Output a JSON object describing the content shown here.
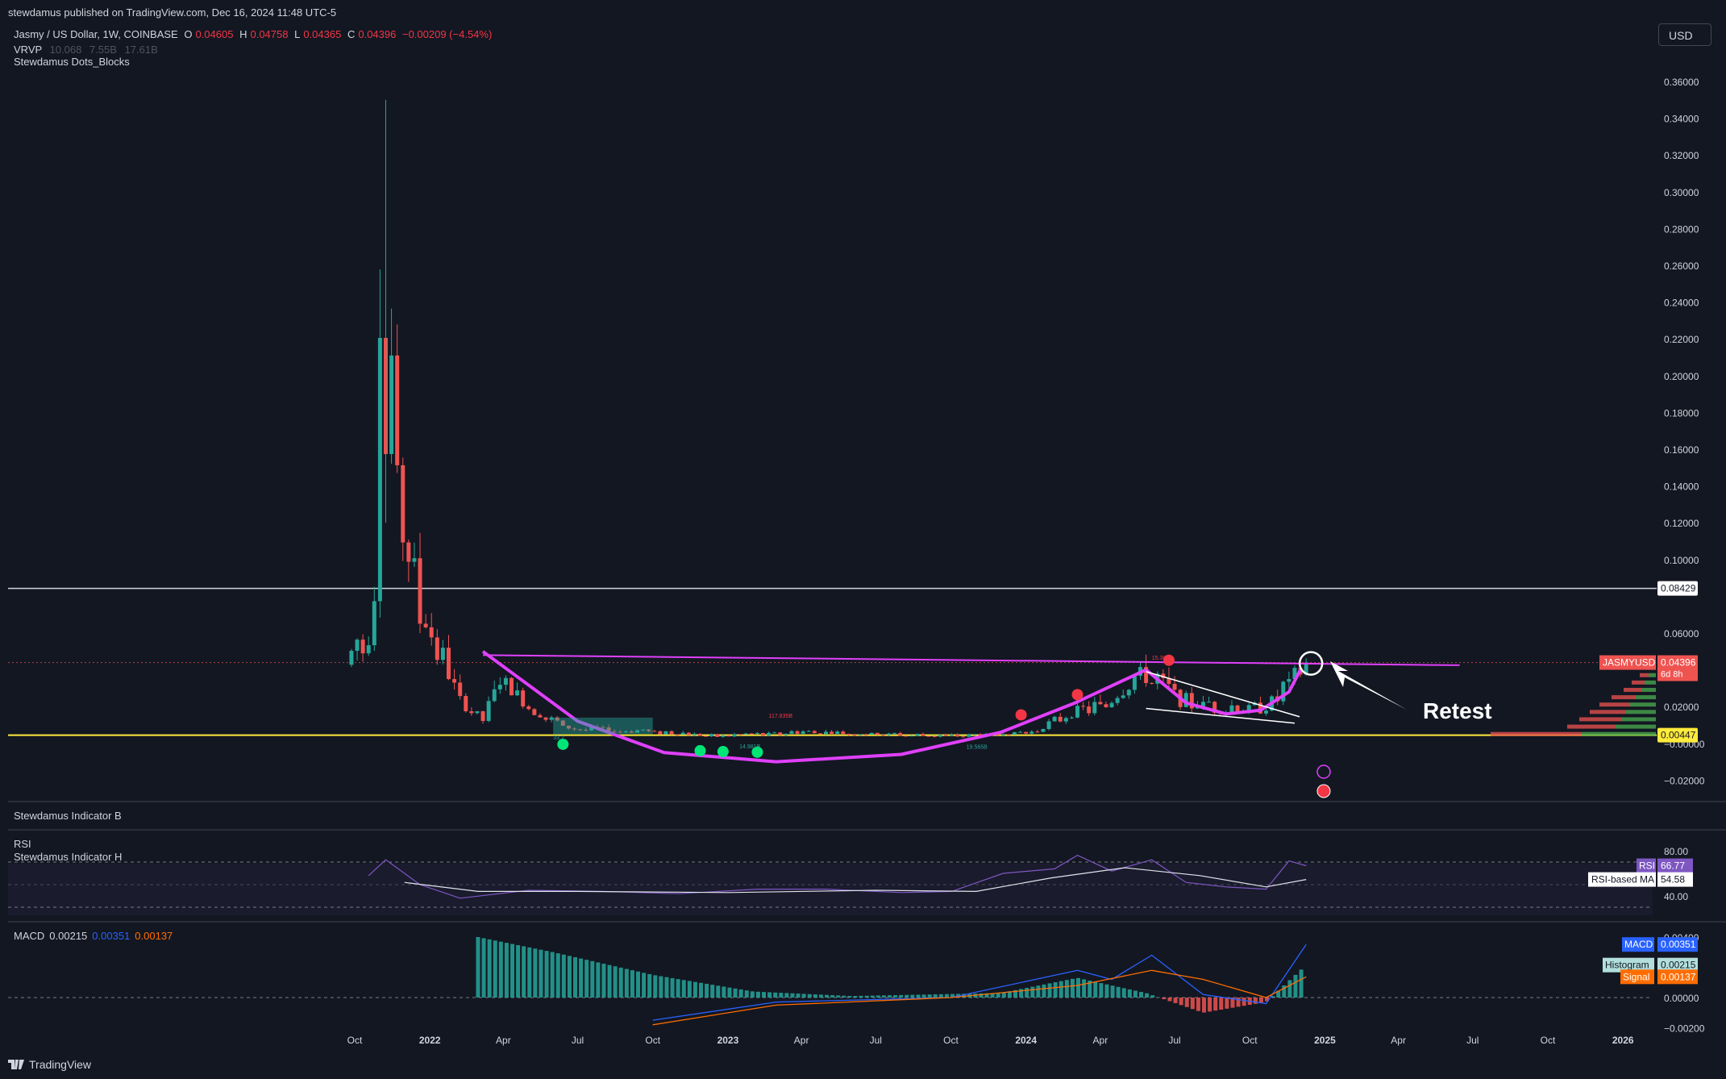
{
  "header": {
    "published": "stewdamus published on TradingView.com, Dec 16, 2024 11:48 UTC-5",
    "symbol": "Jasmy / US Dollar, 1W, COINBASE",
    "o_label": "O",
    "o_value": "0.04605",
    "h_label": "H",
    "h_value": "0.04758",
    "l_label": "L",
    "l_value": "0.04365",
    "c_label": "C",
    "c_value": "0.04396",
    "change": "−0.00209 (−4.54%)",
    "vrvp_label": "VRVP",
    "vrvp_values": [
      "10.068",
      "7.55B",
      "17.61B"
    ],
    "indicator_dots": "Stewdamus Dots_Blocks",
    "currency_button": "USD"
  },
  "panes": {
    "indicator_b": "Stewdamus Indicator B",
    "rsi_title": "RSI",
    "indicator_h": "Stewdamus Indicator H",
    "macd_title": "MACD",
    "macd_values": [
      "0.00215",
      "0.00351",
      "0.00137"
    ]
  },
  "footer": {
    "brand": "TradingView"
  },
  "annotations": {
    "retest": "Retest",
    "small_label_1": "15.38",
    "small_label_2": "117.835B",
    "small_label_3": "14.981B",
    "small_label_4": "19.565B",
    "small_label_5": "33.2"
  },
  "colors": {
    "background": "#131722",
    "up": "#26a69a",
    "down": "#ef5350",
    "magenta": "#e040fb",
    "yellow": "#ffeb3b",
    "rsi_line": "#7e57c2",
    "macd_line": "#2962ff",
    "signal_line": "#ff6d00"
  },
  "chart_data": [
    {
      "type": "candlestick",
      "title": "Jasmy / US Dollar, 1W, COINBASE",
      "x_ticks": [
        "Oct",
        "2022",
        "Apr",
        "Jul",
        "Oct",
        "2023",
        "Apr",
        "Jul",
        "Oct",
        "2024",
        "Apr",
        "Jul",
        "Oct",
        "2025",
        "Apr",
        "Jul",
        "Oct",
        "2026"
      ],
      "y_ticks": [
        "0.36000",
        "0.34000",
        "0.32000",
        "0.30000",
        "0.28000",
        "0.26000",
        "0.24000",
        "0.22000",
        "0.20000",
        "0.18000",
        "0.16000",
        "0.14000",
        "0.12000",
        "0.10000",
        "0.08429",
        "0.06000",
        "0.04396",
        "0.02000",
        "0.00447",
        "−0.00000",
        "−0.02000"
      ],
      "ylim": [
        -0.025,
        0.37
      ],
      "approx_path": [
        {
          "x": "2021-09-27",
          "close": 0.045
        },
        {
          "x": "2021-10-18",
          "close": 0.062
        },
        {
          "x": "2021-10-25",
          "close": 0.09
        },
        {
          "x": "2021-11-01",
          "close": 0.24
        },
        {
          "x": "2021-11-08",
          "close": 0.17
        },
        {
          "x": "2021-11-15",
          "close": 0.19
        },
        {
          "x": "2021-11-22",
          "close": 0.14
        },
        {
          "x": "2021-12-06",
          "close": 0.11
        },
        {
          "x": "2021-12-20",
          "close": 0.075
        },
        {
          "x": "2022-01-10",
          "close": 0.055
        },
        {
          "x": "2022-02-07",
          "close": 0.022
        },
        {
          "x": "2022-03-07",
          "close": 0.014
        },
        {
          "x": "2022-03-28",
          "close": 0.034
        },
        {
          "x": "2022-05-02",
          "close": 0.02
        },
        {
          "x": "2022-06-13",
          "close": 0.009
        },
        {
          "x": "2022-10-03",
          "close": 0.006
        },
        {
          "x": "2022-12-26",
          "close": 0.004
        },
        {
          "x": "2023-04-03",
          "close": 0.006
        },
        {
          "x": "2023-10-02",
          "close": 0.004
        },
        {
          "x": "2024-01-08",
          "close": 0.006
        },
        {
          "x": "2024-02-26",
          "close": 0.017
        },
        {
          "x": "2024-04-01",
          "close": 0.02
        },
        {
          "x": "2024-05-27",
          "close": 0.038
        },
        {
          "x": "2024-07-08",
          "close": 0.024
        },
        {
          "x": "2024-09-02",
          "close": 0.018
        },
        {
          "x": "2024-10-21",
          "close": 0.02
        },
        {
          "x": "2024-11-18",
          "close": 0.032
        },
        {
          "x": "2024-12-09",
          "close": 0.04396
        }
      ],
      "price_labels": [
        {
          "name": "horizontal-line",
          "value": "0.08429"
        },
        {
          "name": "JASMYUSD",
          "value": "0.04396",
          "countdown": "6d 8h"
        },
        {
          "name": "support-line",
          "value": "0.00447"
        }
      ]
    },
    {
      "type": "line",
      "title": "RSI",
      "y_ticks": [
        "80.00",
        "40.00"
      ],
      "series": [
        {
          "name": "RSI",
          "last": "66.77"
        },
        {
          "name": "RSI-based MA",
          "last": "54.58"
        }
      ]
    },
    {
      "type": "bar",
      "title": "MACD",
      "y_ticks": [
        "0.00400",
        "0.00000",
        "−0.00200"
      ],
      "series": [
        {
          "name": "MACD",
          "last": "0.00351"
        },
        {
          "name": "Histogram",
          "last": "0.00215"
        },
        {
          "name": "Signal",
          "last": "0.00137"
        }
      ]
    }
  ]
}
